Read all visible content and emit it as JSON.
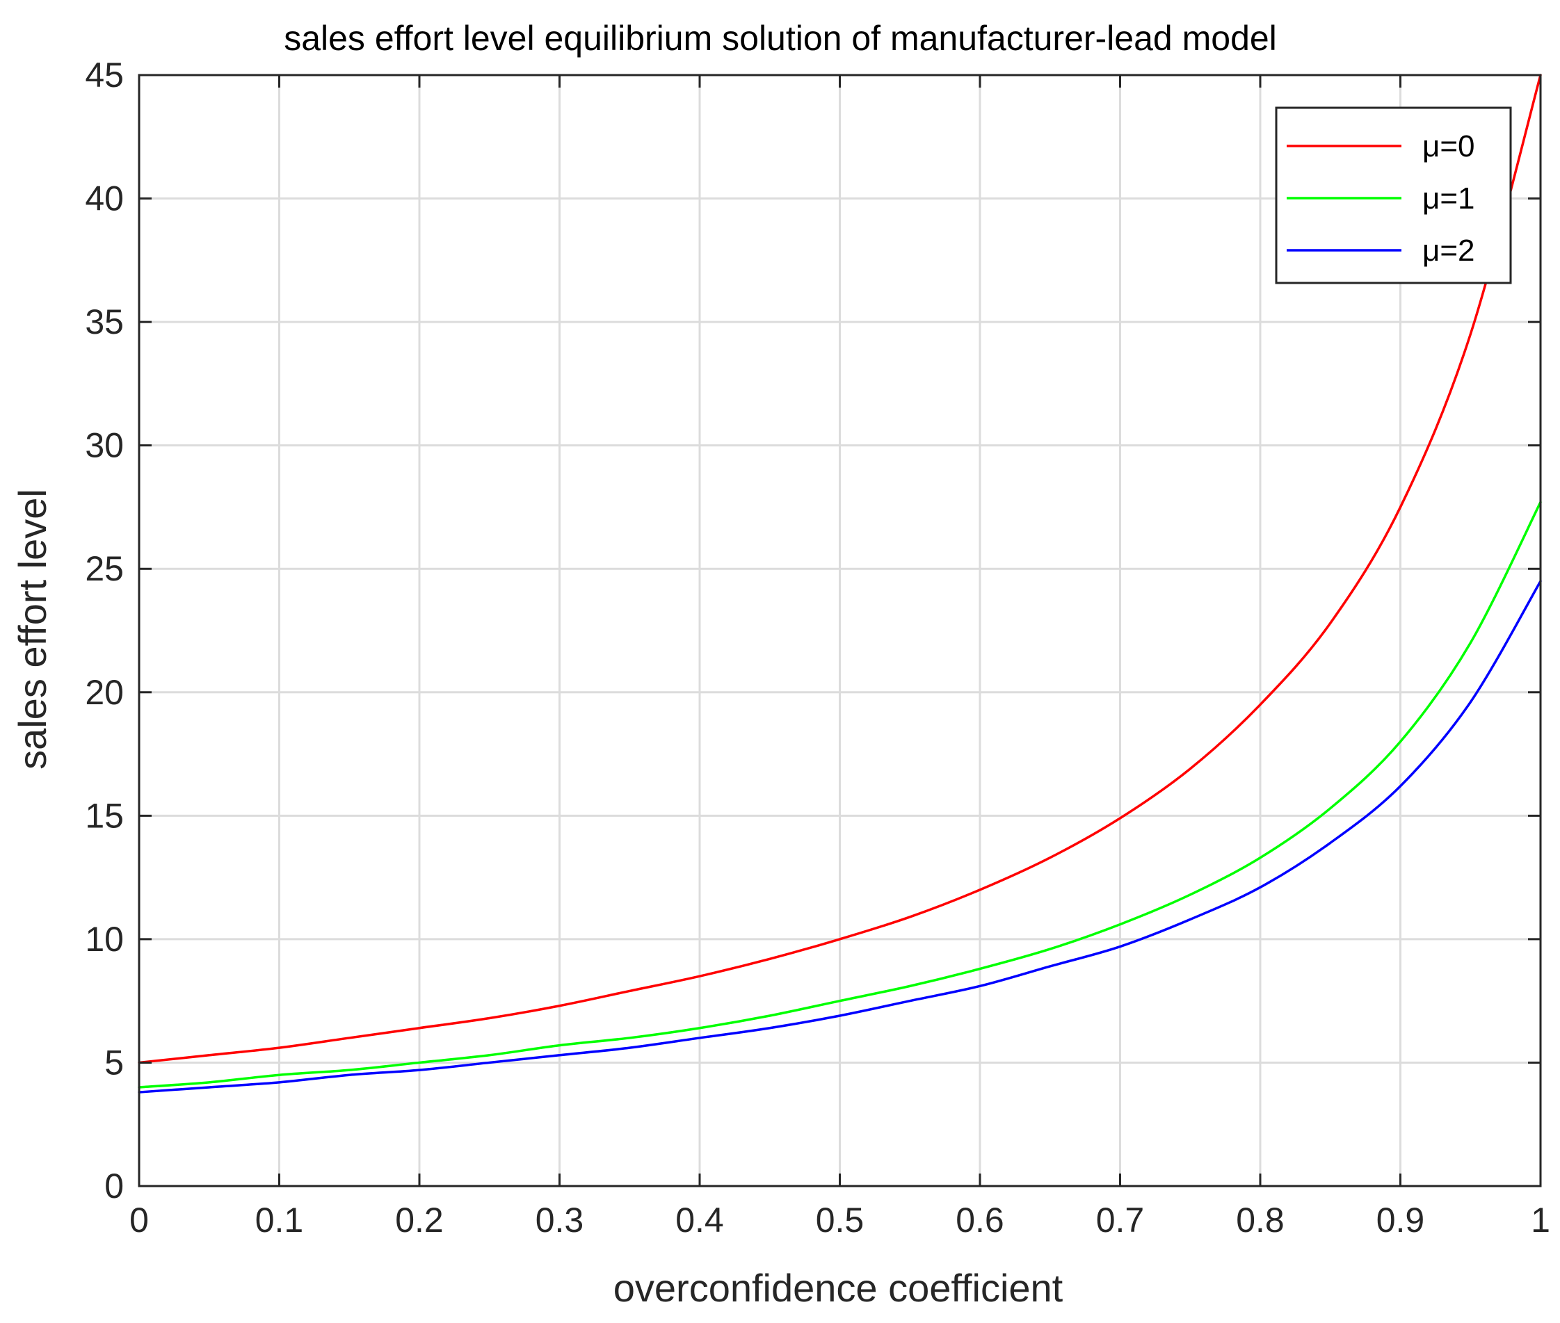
{
  "chart_data": {
    "type": "line",
    "title": "sales effort level equilibrium solution of manufacturer-lead model",
    "xlabel": "overconfidence coefficient",
    "ylabel": "sales effort level",
    "xlim": [
      0,
      1
    ],
    "ylim": [
      0,
      45
    ],
    "x_ticks": [
      0,
      0.1,
      0.2,
      0.3,
      0.4,
      0.5,
      0.6,
      0.7,
      0.8,
      0.9,
      1
    ],
    "x_tick_labels": [
      "0",
      "0.1",
      "0.2",
      "0.3",
      "0.4",
      "0.5",
      "0.6",
      "0.7",
      "0.8",
      "0.9",
      "1"
    ],
    "y_ticks": [
      0,
      5,
      10,
      15,
      20,
      25,
      30,
      35,
      40,
      45
    ],
    "y_tick_labels": [
      "0",
      "5",
      "10",
      "15",
      "20",
      "25",
      "30",
      "35",
      "40",
      "45"
    ],
    "grid": true,
    "legend_position": "top-right",
    "x": [
      0,
      0.05,
      0.1,
      0.15,
      0.2,
      0.25,
      0.3,
      0.35,
      0.4,
      0.45,
      0.5,
      0.55,
      0.6,
      0.65,
      0.7,
      0.75,
      0.8,
      0.85,
      0.9,
      0.95,
      1
    ],
    "series": [
      {
        "name": "μ=0",
        "color": "#ff0000",
        "values": [
          5.0,
          5.3,
          5.6,
          6.0,
          6.4,
          6.8,
          7.3,
          7.9,
          8.5,
          9.2,
          10.0,
          10.9,
          12.0,
          13.3,
          14.9,
          16.9,
          19.5,
          22.8,
          27.5,
          34.5,
          45.0
        ]
      },
      {
        "name": "μ=1",
        "color": "#00ff00",
        "values": [
          4.0,
          4.2,
          4.5,
          4.7,
          5.0,
          5.3,
          5.7,
          6.0,
          6.4,
          6.9,
          7.5,
          8.1,
          8.8,
          9.6,
          10.6,
          11.8,
          13.3,
          15.3,
          18.0,
          22.0,
          27.7
        ]
      },
      {
        "name": "μ=2",
        "color": "#0000ff",
        "values": [
          3.8,
          4.0,
          4.2,
          4.5,
          4.7,
          5.0,
          5.3,
          5.6,
          6.0,
          6.4,
          6.9,
          7.5,
          8.1,
          8.9,
          9.7,
          10.8,
          12.1,
          13.9,
          16.2,
          19.6,
          24.5
        ]
      }
    ]
  }
}
